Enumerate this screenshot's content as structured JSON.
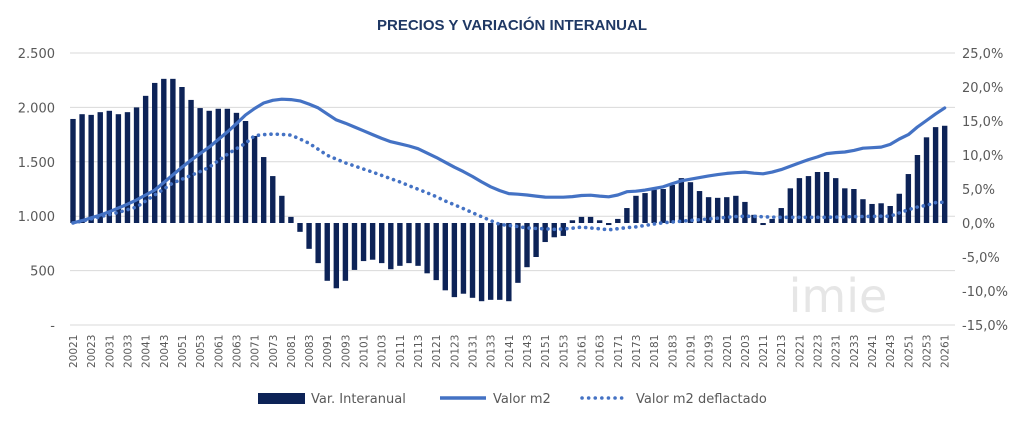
{
  "chart_data": {
    "type": "bar+line",
    "title": "PRECIOS Y VARIACIÓN INTERANUAL",
    "watermark": "imie",
    "categories": [
      "20021",
      "20022",
      "20023",
      "20024",
      "20031",
      "20032",
      "20033",
      "20034",
      "20041",
      "20042",
      "20043",
      "20044",
      "20051",
      "20052",
      "20053",
      "20054",
      "20061",
      "20062",
      "20063",
      "20064",
      "20071",
      "20072",
      "20073",
      "20074",
      "20081",
      "20082",
      "20083",
      "20084",
      "20091",
      "20092",
      "20093",
      "20094",
      "20101",
      "20102",
      "20103",
      "20104",
      "20111",
      "20112",
      "20113",
      "20114",
      "20121",
      "20122",
      "20123",
      "20124",
      "20131",
      "20132",
      "20133",
      "20134",
      "20141",
      "20142",
      "20143",
      "20144",
      "20151",
      "20152",
      "20153",
      "20154",
      "20161",
      "20162",
      "20163",
      "20164",
      "20171",
      "20172",
      "20173",
      "20174",
      "20181",
      "20182",
      "20183",
      "20184",
      "20191",
      "20192",
      "20193",
      "20194",
      "20201",
      "20202",
      "20203",
      "20204",
      "20211",
      "20212",
      "20213",
      "20214",
      "20221",
      "20222",
      "20223",
      "20224",
      "20231",
      "20232",
      "20233",
      "20234",
      "20241",
      "20242",
      "20243",
      "20244",
      "20251",
      "20252",
      "20253",
      "20254",
      "20261"
    ],
    "left_axis": {
      "ylim": [
        0,
        2500
      ],
      "ticks": [
        "-",
        "500",
        "1.000",
        "1.500",
        "2.000",
        "2.500"
      ]
    },
    "right_axis": {
      "ylim": [
        -15,
        25
      ],
      "unit": "%",
      "ticks": [
        "-15,0%",
        "-10,0%",
        "-5,0%",
        "0,0%",
        "5,0%",
        "10,0%",
        "15,0%",
        "20,0%",
        "25,0%"
      ]
    },
    "grid": true,
    "legend_position": "bottom",
    "series": [
      {
        "name": "Var. Interanual",
        "type": "bar",
        "axis": "right",
        "color": "#0d2357",
        "values": [
          15.3,
          16.0,
          15.9,
          16.3,
          16.5,
          16.0,
          16.3,
          17.0,
          18.7,
          20.6,
          21.2,
          21.2,
          20.0,
          18.1,
          16.9,
          16.5,
          16.8,
          16.8,
          16.2,
          15.0,
          12.8,
          9.7,
          6.9,
          4.0,
          0.9,
          -1.3,
          -3.8,
          -5.9,
          -8.5,
          -9.6,
          -8.5,
          -6.9,
          -5.6,
          -5.4,
          -5.9,
          -6.8,
          -6.3,
          -5.9,
          -6.3,
          -7.4,
          -8.4,
          -9.9,
          -10.9,
          -10.4,
          -11.0,
          -11.5,
          -11.3,
          -11.3,
          -11.5,
          -8.8,
          -6.5,
          -5.0,
          -2.8,
          -2.1,
          -1.9,
          0.4,
          0.9,
          0.9,
          0.4,
          -0.3,
          0.6,
          2.2,
          4.0,
          4.4,
          4.9,
          5.0,
          5.6,
          6.6,
          6.0,
          4.7,
          3.8,
          3.7,
          3.8,
          4.0,
          3.1,
          1.2,
          -0.3,
          0.6,
          2.2,
          5.1,
          6.6,
          6.9,
          7.5,
          7.5,
          6.6,
          5.1,
          5.0,
          3.5,
          2.8,
          2.9,
          2.5,
          4.3,
          7.2,
          10.0,
          12.6,
          14.1,
          14.3
        ]
      },
      {
        "name": "Valor m2",
        "type": "line",
        "axis": "left",
        "color": "#4472c4",
        "dash": "solid",
        "values": [
          938,
          960,
          985,
          1010,
          1040,
          1075,
          1110,
          1150,
          1195,
          1240,
          1310,
          1380,
          1450,
          1515,
          1575,
          1635,
          1705,
          1775,
          1850,
          1930,
          1990,
          2040,
          2065,
          2075,
          2072,
          2060,
          2030,
          1995,
          1940,
          1885,
          1855,
          1820,
          1785,
          1750,
          1715,
          1685,
          1665,
          1645,
          1620,
          1580,
          1540,
          1495,
          1450,
          1410,
          1365,
          1315,
          1270,
          1235,
          1208,
          1202,
          1195,
          1185,
          1176,
          1175,
          1175,
          1180,
          1190,
          1193,
          1185,
          1178,
          1195,
          1225,
          1230,
          1240,
          1255,
          1270,
          1300,
          1325,
          1340,
          1355,
          1370,
          1382,
          1393,
          1400,
          1405,
          1395,
          1390,
          1405,
          1428,
          1460,
          1490,
          1520,
          1545,
          1575,
          1585,
          1590,
          1605,
          1625,
          1630,
          1635,
          1660,
          1710,
          1750,
          1820,
          1880,
          1940,
          1995
        ]
      },
      {
        "name": "Valor m2 deflactado",
        "type": "line",
        "axis": "left",
        "color": "#4472c4",
        "dash": "dotted",
        "values": [
          938,
          955,
          975,
          995,
          1015,
          1035,
          1060,
          1085,
          1140,
          1195,
          1250,
          1305,
          1340,
          1375,
          1410,
          1450,
          1510,
          1570,
          1620,
          1670,
          1740,
          1750,
          1755,
          1752,
          1745,
          1710,
          1670,
          1615,
          1560,
          1525,
          1490,
          1462,
          1433,
          1405,
          1375,
          1345,
          1315,
          1280,
          1248,
          1215,
          1180,
          1140,
          1105,
          1070,
          1032,
          995,
          960,
          925,
          915,
          905,
          892,
          888,
          884,
          880,
          882,
          890,
          900,
          892,
          884,
          875,
          885,
          895,
          902,
          915,
          928,
          940,
          947,
          954,
          961,
          968,
          975,
          982,
          990,
          996,
          1000,
          998,
          995,
          992,
          990,
          990,
          990,
          990,
          990,
          990,
          992,
          994,
          996,
          997,
          998,
          1000,
          1000,
          1030,
          1060,
          1085,
          1100,
          1125,
          1130
        ]
      }
    ]
  }
}
